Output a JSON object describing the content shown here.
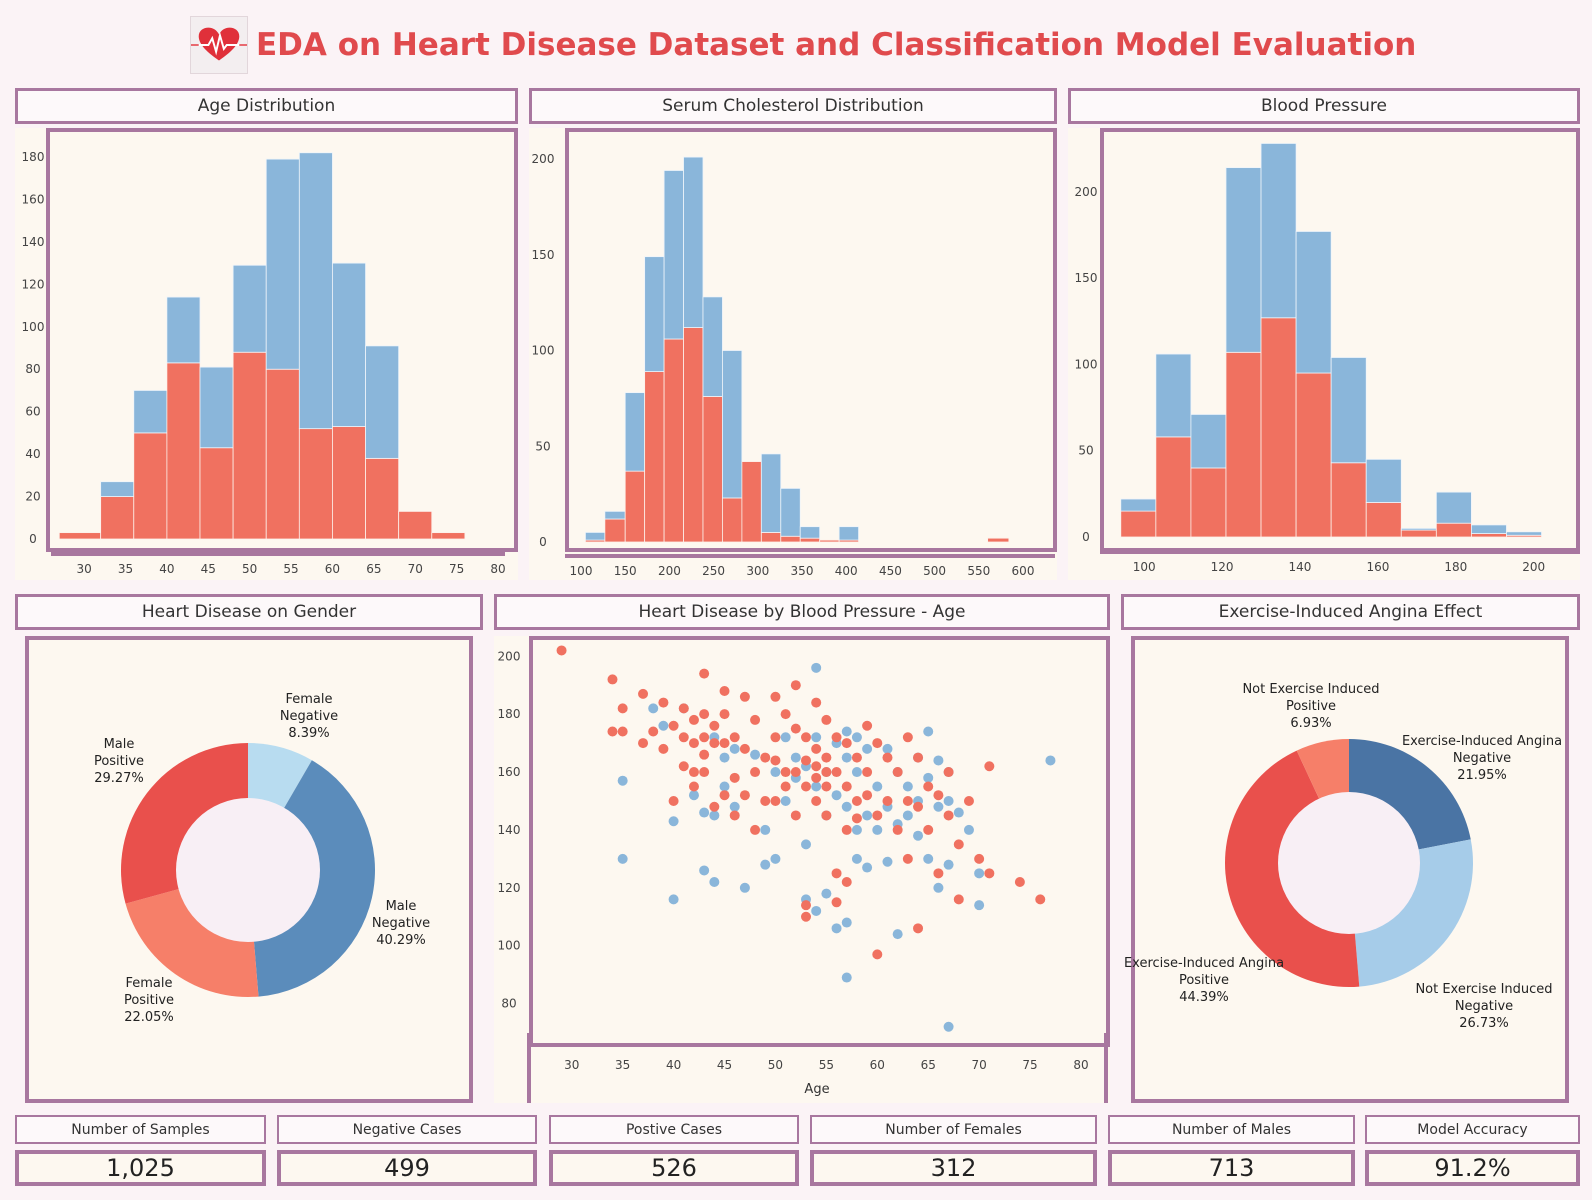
{
  "title": "EDA on Heart Disease Dataset and Classification Model Evaluation",
  "logo_icon": "heart-pulse-icon",
  "colors": {
    "positive": "#f07160",
    "negative": "#8ab6da",
    "border": "#a8779f",
    "title": "#e04a4d"
  },
  "panels": {
    "age": "Age Distribution",
    "chol": "Serum Cholesterol Distribution",
    "bp": "Blood Pressure",
    "gender": "Heart Disease on Gender",
    "scatter": "Heart Disease by Blood Pressure - Age",
    "angina": "Exercise-Induced Angina Effect"
  },
  "kpis": [
    {
      "label": "Number of Samples",
      "value": "1,025"
    },
    {
      "label": "Negative Cases",
      "value": "499"
    },
    {
      "label": "Postive Cases",
      "value": "526"
    },
    {
      "label": "Number of Females",
      "value": "312"
    },
    {
      "label": "Number of Males",
      "value": "713"
    },
    {
      "label": "Model Accuracy",
      "value": "91.2%"
    }
  ],
  "chart_data": [
    {
      "type": "bar",
      "stacked": true,
      "title": "Age Distribution",
      "bins": [
        [
          27,
          32
        ],
        [
          32,
          36
        ],
        [
          36,
          40
        ],
        [
          40,
          44
        ],
        [
          44,
          48
        ],
        [
          48,
          52
        ],
        [
          52,
          56
        ],
        [
          56,
          60
        ],
        [
          60,
          64
        ],
        [
          64,
          68
        ],
        [
          68,
          72
        ],
        [
          72,
          76
        ],
        [
          76,
          80
        ]
      ],
      "series": [
        {
          "values": [
            3,
            20,
            50,
            83,
            43,
            88,
            80,
            52,
            53,
            38,
            13,
            3,
            0
          ]
        },
        {
          "values": [
            0,
            7,
            20,
            31,
            38,
            41,
            99,
            130,
            77,
            53,
            0,
            0,
            0
          ]
        }
      ],
      "xticks": [
        30,
        35,
        40,
        45,
        50,
        55,
        60,
        65,
        70,
        75,
        80
      ],
      "yticks": [
        0,
        20,
        40,
        60,
        80,
        100,
        120,
        140,
        160,
        180
      ],
      "xlim": [
        26,
        80
      ],
      "ylim": [
        0,
        180
      ]
    },
    {
      "type": "bar",
      "stacked": true,
      "title": "Serum Cholesterol Distribution",
      "bins": [
        [
          105,
          127
        ],
        [
          127,
          150
        ],
        [
          150,
          172
        ],
        [
          172,
          194
        ],
        [
          194,
          216
        ],
        [
          216,
          238
        ],
        [
          238,
          260
        ],
        [
          260,
          282
        ],
        [
          282,
          304
        ],
        [
          304,
          326
        ],
        [
          326,
          348
        ],
        [
          348,
          370
        ],
        [
          370,
          392
        ],
        [
          392,
          414
        ],
        [
          560,
          584
        ]
      ],
      "series": [
        {
          "values": [
            1,
            12,
            37,
            89,
            106,
            112,
            76,
            23,
            42,
            5,
            3,
            2,
            1,
            1,
            2
          ]
        },
        {
          "values": [
            4,
            4,
            41,
            60,
            88,
            89,
            52,
            77,
            0,
            41,
            25,
            6,
            0,
            7,
            0
          ]
        }
      ],
      "xticks": [
        100,
        150,
        200,
        250,
        300,
        350,
        400,
        450,
        500,
        550,
        600
      ],
      "yticks": [
        0,
        50,
        100,
        150,
        200
      ],
      "xlim": [
        100,
        600
      ],
      "ylim": [
        0,
        200
      ]
    },
    {
      "type": "bar",
      "stacked": true,
      "title": "Blood Pressure",
      "bins": [
        [
          94,
          103
        ],
        [
          103,
          112
        ],
        [
          112,
          121
        ],
        [
          121,
          130
        ],
        [
          130,
          139
        ],
        [
          139,
          148
        ],
        [
          148,
          157
        ],
        [
          157,
          166
        ],
        [
          166,
          175
        ],
        [
          175,
          184
        ],
        [
          184,
          193
        ],
        [
          193,
          202
        ]
      ],
      "series": [
        {
          "values": [
            15,
            58,
            40,
            107,
            127,
            95,
            43,
            20,
            4,
            8,
            2,
            1
          ]
        },
        {
          "values": [
            7,
            48,
            31,
            107,
            101,
            82,
            61,
            25,
            1,
            18,
            5,
            2
          ]
        }
      ],
      "xticks": [
        100,
        120,
        140,
        160,
        180,
        200
      ],
      "yticks": [
        0,
        50,
        100,
        150,
        200
      ],
      "xlim": [
        92,
        207
      ],
      "ylim": [
        0,
        230
      ]
    },
    {
      "type": "pie",
      "title": "Heart Disease on Gender",
      "slices": [
        {
          "label": "Female",
          "status": "Negative",
          "value": 8.39,
          "pct": "8.39%",
          "color": "#b8dcf0"
        },
        {
          "label": "Male",
          "status": "Negative",
          "value": 40.29,
          "pct": "40.29%",
          "color": "#5b8cbb"
        },
        {
          "label": "Female",
          "status": "Positive",
          "value": 22.05,
          "pct": "22.05%",
          "color": "#f67f69"
        },
        {
          "label": "Male",
          "status": "Positive",
          "value": 29.27,
          "pct": "29.27%",
          "color": "#e9504c"
        }
      ]
    },
    {
      "type": "scatter",
      "title": "Heart Disease by Blood Pressure - Age",
      "xlabel": "Age",
      "xticks": [
        30,
        35,
        40,
        45,
        50,
        55,
        60,
        65,
        70,
        75,
        80
      ],
      "yticks": [
        80,
        100,
        120,
        140,
        160,
        180,
        200
      ],
      "xlim": [
        26,
        80
      ],
      "ylim": [
        65,
        207
      ],
      "positive": [
        [
          29,
          202
        ],
        [
          34,
          192
        ],
        [
          35,
          182
        ],
        [
          34,
          174
        ],
        [
          35,
          174
        ],
        [
          37,
          187
        ],
        [
          37,
          170
        ],
        [
          38,
          174
        ],
        [
          39,
          184
        ],
        [
          39,
          168
        ],
        [
          40,
          176
        ],
        [
          40,
          150
        ],
        [
          41,
          182
        ],
        [
          41,
          172
        ],
        [
          41,
          162
        ],
        [
          42,
          178
        ],
        [
          42,
          170
        ],
        [
          42,
          160
        ],
        [
          42,
          155
        ],
        [
          43,
          194
        ],
        [
          43,
          180
        ],
        [
          43,
          172
        ],
        [
          43,
          166
        ],
        [
          43,
          160
        ],
        [
          44,
          176
        ],
        [
          44,
          170
        ],
        [
          44,
          148
        ],
        [
          45,
          188
        ],
        [
          45,
          180
        ],
        [
          45,
          170
        ],
        [
          45,
          152
        ],
        [
          46,
          172
        ],
        [
          46,
          158
        ],
        [
          46,
          145
        ],
        [
          47,
          186
        ],
        [
          47,
          168
        ],
        [
          47,
          152
        ],
        [
          48,
          178
        ],
        [
          48,
          160
        ],
        [
          48,
          140
        ],
        [
          49,
          165
        ],
        [
          49,
          150
        ],
        [
          50,
          186
        ],
        [
          50,
          172
        ],
        [
          50,
          164
        ],
        [
          50,
          150
        ],
        [
          51,
          180
        ],
        [
          51,
          160
        ],
        [
          51,
          155
        ],
        [
          52,
          190
        ],
        [
          52,
          175
        ],
        [
          52,
          160
        ],
        [
          52,
          145
        ],
        [
          53,
          172
        ],
        [
          53,
          164
        ],
        [
          53,
          155
        ],
        [
          53,
          114
        ],
        [
          53,
          110
        ],
        [
          54,
          184
        ],
        [
          54,
          168
        ],
        [
          54,
          162
        ],
        [
          54,
          158
        ],
        [
          54,
          150
        ],
        [
          55,
          178
        ],
        [
          55,
          165
        ],
        [
          55,
          160
        ],
        [
          55,
          155
        ],
        [
          55,
          145
        ],
        [
          56,
          172
        ],
        [
          56,
          160
        ],
        [
          56,
          125
        ],
        [
          56,
          115
        ],
        [
          57,
          170
        ],
        [
          57,
          155
        ],
        [
          57,
          140
        ],
        [
          57,
          122
        ],
        [
          58,
          165
        ],
        [
          58,
          150
        ],
        [
          58,
          144
        ],
        [
          59,
          176
        ],
        [
          59,
          160
        ],
        [
          59,
          152
        ],
        [
          60,
          170
        ],
        [
          60,
          145
        ],
        [
          60,
          97
        ],
        [
          61,
          165
        ],
        [
          61,
          150
        ],
        [
          62,
          160
        ],
        [
          62,
          140
        ],
        [
          63,
          172
        ],
        [
          63,
          150
        ],
        [
          63,
          130
        ],
        [
          64,
          165
        ],
        [
          64,
          148
        ],
        [
          64,
          106
        ],
        [
          65,
          155
        ],
        [
          65,
          140
        ],
        [
          66,
          152
        ],
        [
          66,
          125
        ],
        [
          67,
          160
        ],
        [
          67,
          145
        ],
        [
          68,
          135
        ],
        [
          68,
          116
        ],
        [
          69,
          150
        ],
        [
          70,
          130
        ],
        [
          71,
          162
        ],
        [
          71,
          125
        ],
        [
          74,
          122
        ],
        [
          76,
          116
        ]
      ],
      "negative": [
        [
          35,
          157
        ],
        [
          35,
          130
        ],
        [
          38,
          182
        ],
        [
          39,
          176
        ],
        [
          40,
          143
        ],
        [
          40,
          116
        ],
        [
          41,
          182
        ],
        [
          42,
          152
        ],
        [
          43,
          146
        ],
        [
          43,
          126
        ],
        [
          44,
          172
        ],
        [
          44,
          145
        ],
        [
          44,
          122
        ],
        [
          45,
          165
        ],
        [
          45,
          155
        ],
        [
          46,
          168
        ],
        [
          46,
          148
        ],
        [
          47,
          120
        ],
        [
          48,
          166
        ],
        [
          49,
          140
        ],
        [
          49,
          128
        ],
        [
          50,
          160
        ],
        [
          50,
          130
        ],
        [
          51,
          172
        ],
        [
          51,
          150
        ],
        [
          52,
          165
        ],
        [
          52,
          158
        ],
        [
          53,
          162
        ],
        [
          53,
          135
        ],
        [
          53,
          116
        ],
        [
          54,
          196
        ],
        [
          54,
          172
        ],
        [
          54,
          155
        ],
        [
          54,
          112
        ],
        [
          55,
          160
        ],
        [
          55,
          145
        ],
        [
          55,
          118
        ],
        [
          56,
          170
        ],
        [
          56,
          152
        ],
        [
          56,
          106
        ],
        [
          57,
          174
        ],
        [
          57,
          165
        ],
        [
          57,
          148
        ],
        [
          57,
          108
        ],
        [
          57,
          89
        ],
        [
          58,
          172
        ],
        [
          58,
          160
        ],
        [
          58,
          140
        ],
        [
          58,
          130
        ],
        [
          59,
          168
        ],
        [
          59,
          145
        ],
        [
          59,
          127
        ],
        [
          60,
          155
        ],
        [
          60,
          140
        ],
        [
          61,
          168
        ],
        [
          61,
          148
        ],
        [
          61,
          129
        ],
        [
          62,
          160
        ],
        [
          62,
          142
        ],
        [
          62,
          104
        ],
        [
          63,
          155
        ],
        [
          63,
          145
        ],
        [
          64,
          165
        ],
        [
          64,
          150
        ],
        [
          64,
          138
        ],
        [
          65,
          174
        ],
        [
          65,
          158
        ],
        [
          65,
          130
        ],
        [
          66,
          164
        ],
        [
          66,
          148
        ],
        [
          66,
          120
        ],
        [
          67,
          160
        ],
        [
          67,
          150
        ],
        [
          67,
          128
        ],
        [
          67,
          72
        ],
        [
          68,
          146
        ],
        [
          69,
          140
        ],
        [
          70,
          125
        ],
        [
          70,
          114
        ],
        [
          77,
          164
        ]
      ]
    },
    {
      "type": "pie",
      "title": "Exercise-Induced Angina Effect",
      "slices": [
        {
          "label": "Exercise-Induced Angina",
          "status": "Negative",
          "value": 21.95,
          "pct": "21.95%",
          "color": "#4a74a4"
        },
        {
          "label": "Not Exercise Induced",
          "status": "Negative",
          "value": 26.73,
          "pct": "26.73%",
          "color": "#a6cce9"
        },
        {
          "label": "Exercise-Induced Angina",
          "status": "Positive",
          "value": 44.39,
          "pct": "44.39%",
          "color": "#e9504c"
        },
        {
          "label": "Not Exercise Induced",
          "status": "Positive",
          "value": 6.93,
          "pct": "6.93%",
          "color": "#f67f69"
        }
      ]
    }
  ]
}
